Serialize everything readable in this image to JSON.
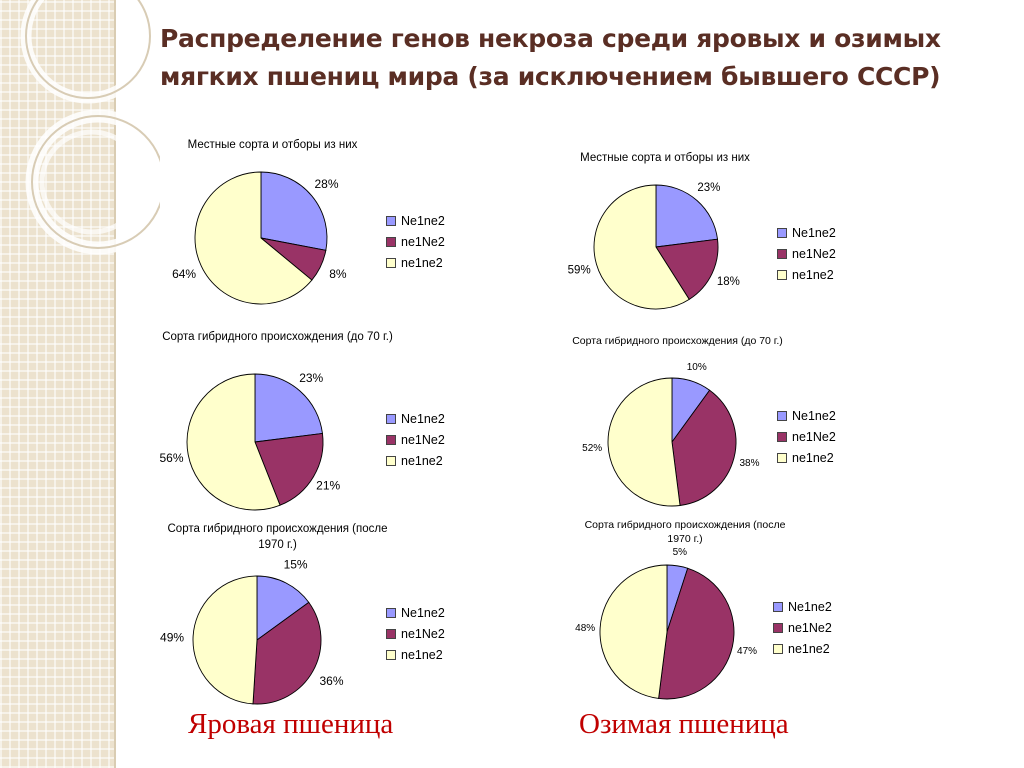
{
  "slide": {
    "title": "Распределение генов некроза среди яровых и озимых мягких пшениц мира (за исключением бывшего СССР)"
  },
  "columns": {
    "spring": "Яровая пшеница",
    "winter": "Озимая пшеница"
  },
  "colors": {
    "Ne1ne2": "#9999ff",
    "ne1Ne2": "#993366",
    "ne1ne2": "#ffffcc"
  },
  "chart_data": [
    {
      "type": "pie",
      "title": "Местные сорта и отборы из них",
      "categories": [
        "Ne1ne2",
        "ne1Ne2",
        "ne1ne2"
      ],
      "values": [
        28,
        8,
        64
      ],
      "data_labels": [
        "28%",
        "8%",
        "64%"
      ],
      "legend": [
        "Ne1ne2",
        "ne1Ne2",
        "ne1ne2"
      ],
      "legend_position": "right"
    },
    {
      "type": "pie",
      "title": "Сорта гибридного происхождения (до 70 г.)",
      "categories": [
        "Ne1ne2",
        "ne1Ne2",
        "ne1ne2"
      ],
      "values": [
        23,
        21,
        56
      ],
      "data_labels": [
        "23%",
        "21%",
        "56%"
      ],
      "legend": [
        "Ne1ne2",
        "ne1Ne2",
        "ne1ne2"
      ],
      "legend_position": "right"
    },
    {
      "type": "pie",
      "title": "Сорта гибридного происхождения (после 1970 г.)",
      "categories": [
        "Ne1ne2",
        "ne1Ne2",
        "ne1ne2"
      ],
      "values": [
        15,
        36,
        49
      ],
      "data_labels": [
        "15%",
        "36%",
        "49%"
      ],
      "legend": [
        "Ne1ne2",
        "ne1Ne2",
        "ne1ne2"
      ],
      "legend_position": "right"
    },
    {
      "type": "pie",
      "title": "Местные сорта и отборы из них",
      "categories": [
        "Ne1ne2",
        "ne1Ne2",
        "ne1ne2"
      ],
      "values": [
        23,
        18,
        59
      ],
      "data_labels": [
        "23%",
        "18%",
        "59%"
      ],
      "legend": [
        "Ne1ne2",
        "ne1Ne2",
        "ne1ne2"
      ],
      "legend_position": "right"
    },
    {
      "type": "pie",
      "title": "Сорта гибридного происхождения (до 70 г.)",
      "categories": [
        "Ne1ne2",
        "ne1Ne2",
        "ne1ne2"
      ],
      "values": [
        10,
        38,
        52
      ],
      "data_labels": [
        "10%",
        "38%",
        "52%"
      ],
      "legend": [
        "Ne1ne2",
        "ne1Ne2",
        "ne1ne2"
      ],
      "legend_position": "right"
    },
    {
      "type": "pie",
      "title": "Сорта гибридного происхождения (после 1970 г.)",
      "categories": [
        "Ne1ne2",
        "ne1Ne2",
        "ne1ne2"
      ],
      "values": [
        5,
        47,
        48
      ],
      "data_labels": [
        "5%",
        "47%",
        "48%"
      ],
      "legend": [
        "Ne1ne2",
        "ne1Ne2",
        "ne1ne2"
      ],
      "legend_position": "right"
    }
  ]
}
